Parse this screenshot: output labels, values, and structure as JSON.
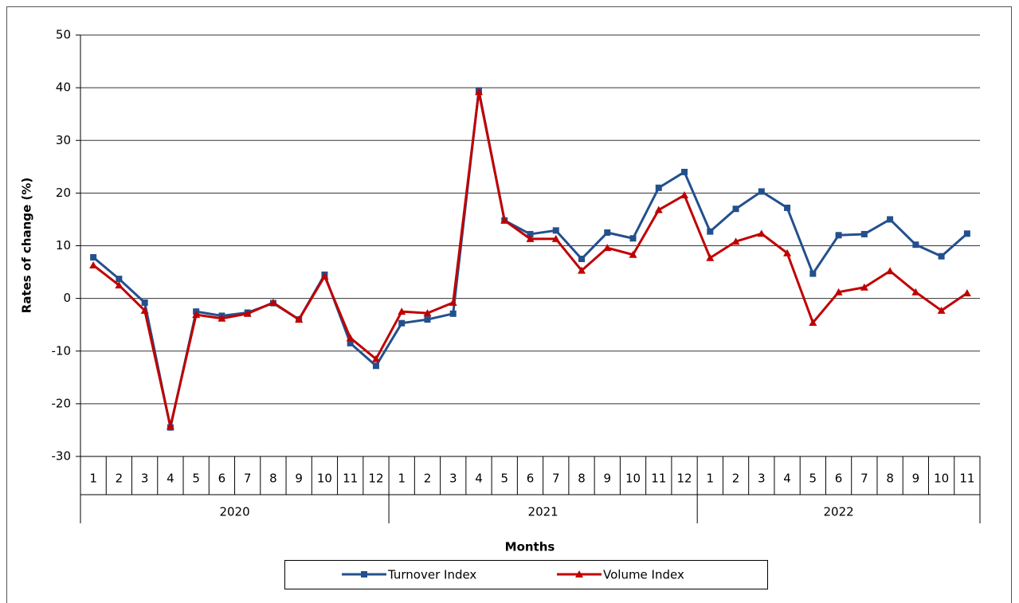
{
  "chart_data": {
    "type": "line",
    "y_label": "Rates of change (%)",
    "x_label": "Months",
    "category_groups": [
      {
        "name": "2020",
        "categories": [
          "1",
          "2",
          "3",
          "4",
          "5",
          "6",
          "7",
          "8",
          "9",
          "10",
          "11",
          "12"
        ]
      },
      {
        "name": "2021",
        "categories": [
          "1",
          "2",
          "3",
          "4",
          "5",
          "6",
          "7",
          "8",
          "9",
          "10",
          "11",
          "12"
        ]
      },
      {
        "name": "2022",
        "categories": [
          "1",
          "2",
          "3",
          "4",
          "5",
          "6",
          "7",
          "8",
          "9",
          "10",
          "11"
        ]
      }
    ],
    "series": [
      {
        "name": "Turnover Index",
        "color": "#23508d",
        "marker": "square",
        "values": [
          7.8,
          3.7,
          -0.8,
          -24.5,
          -2.5,
          -3.3,
          -2.7,
          -0.9,
          -4.0,
          4.5,
          -8.5,
          -12.8,
          -4.7,
          -4.0,
          -2.9,
          39.5,
          14.8,
          12.2,
          12.9,
          7.5,
          12.5,
          11.4,
          21.0,
          24.0,
          12.7,
          17.0,
          20.3,
          17.2,
          4.7,
          12.0,
          12.2,
          15.0,
          10.2,
          8.0,
          12.3
        ]
      },
      {
        "name": "Volume Index",
        "color": "#c00000",
        "marker": "triangle",
        "values": [
          6.3,
          2.5,
          -2.3,
          -24.3,
          -3.1,
          -3.8,
          -2.9,
          -0.8,
          -4.0,
          4.2,
          -7.5,
          -11.5,
          -2.5,
          -2.8,
          -0.8,
          39.2,
          14.8,
          11.3,
          11.3,
          5.3,
          9.6,
          8.3,
          16.8,
          19.6,
          7.7,
          10.8,
          12.3,
          8.6,
          -4.6,
          1.2,
          2.1,
          5.2,
          1.2,
          -2.3,
          1.0
        ]
      }
    ],
    "ylim": [
      -30,
      50
    ],
    "yticks": [
      -30,
      -20,
      -10,
      0,
      10,
      20,
      30,
      40,
      50
    ],
    "grid": true,
    "legend": "bottom"
  }
}
